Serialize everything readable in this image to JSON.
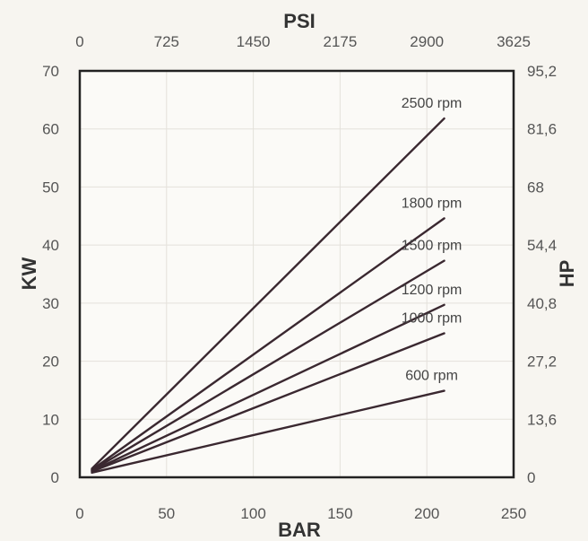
{
  "chart_data": {
    "type": "line",
    "title": "",
    "xlabel": "BAR",
    "ylabel": "KW",
    "x_top_label": "PSI",
    "y_right_label": "HP",
    "xlim": [
      0,
      250
    ],
    "ylim": [
      0,
      70
    ],
    "x_ticks": [
      0,
      50,
      100,
      150,
      200,
      250
    ],
    "x_tick_labels": [
      "0",
      "50",
      "100",
      "150",
      "200",
      "250"
    ],
    "x_top_tick_labels": [
      "0",
      "725",
      "1450",
      "2175",
      "2900",
      "3625"
    ],
    "y_ticks": [
      0,
      10,
      20,
      30,
      40,
      50,
      60,
      70
    ],
    "y_tick_labels": [
      "0",
      "10",
      "20",
      "30",
      "40",
      "50",
      "60",
      "70"
    ],
    "y_right_ticks": [
      0,
      13.6,
      27.2,
      40.8,
      54.4,
      68,
      81.6,
      95.2
    ],
    "y_right_tick_labels": [
      "0",
      "13,6",
      "27,2",
      "40,8",
      "54,4",
      "68",
      "81,6",
      "95,2"
    ],
    "grid": true,
    "series": [
      {
        "name": "2500 rpm",
        "x": [
          7,
          210
        ],
        "y": [
          1.5,
          61.8
        ]
      },
      {
        "name": "1800 rpm",
        "x": [
          7,
          210
        ],
        "y": [
          1.3,
          44.6
        ]
      },
      {
        "name": "1500 rpm",
        "x": [
          7,
          210
        ],
        "y": [
          1.2,
          37.3
        ]
      },
      {
        "name": "1200 rpm",
        "x": [
          7,
          210
        ],
        "y": [
          1.1,
          29.7
        ]
      },
      {
        "name": "1000 rpm",
        "x": [
          7,
          210
        ],
        "y": [
          1.0,
          24.8
        ]
      },
      {
        "name": "600 rpm",
        "x": [
          7,
          210
        ],
        "y": [
          0.8,
          14.9
        ]
      }
    ],
    "colors": {
      "line": "#3a2830",
      "frame": "#222222",
      "grid": "#e4e1db",
      "background": "#fbfaf7"
    }
  }
}
